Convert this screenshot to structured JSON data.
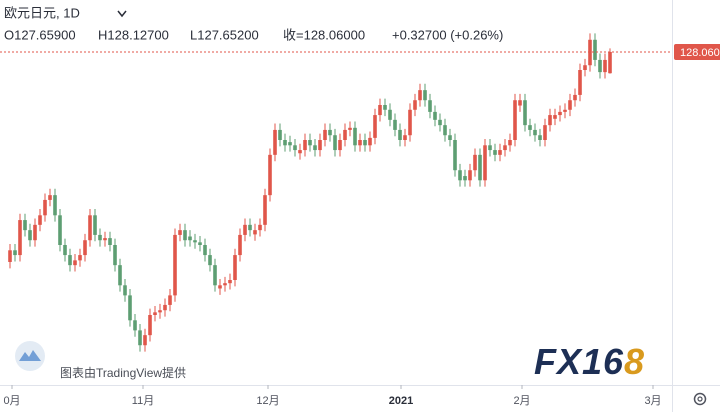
{
  "chart_data": {
    "type": "candlestick",
    "title": "欧元日元, 1D",
    "ohlc_header": [
      "O127.65900",
      "H128.12700",
      "L127.65200",
      "收=128.06000",
      "+0.32700 (+0.26%)"
    ],
    "watermark": "图表由TradingView提供",
    "logo": [
      "FX16",
      "8"
    ],
    "up_color": "#e0564a",
    "down_color": "#5d9e72",
    "x": [
      0,
      1,
      2,
      3,
      4,
      5,
      6,
      7,
      8,
      9,
      10,
      11,
      12,
      13,
      14,
      15,
      16,
      17,
      18,
      19,
      20,
      21,
      22,
      23,
      24,
      25,
      26,
      27,
      28,
      29,
      30,
      31,
      32,
      33,
      34,
      35,
      36,
      37,
      38,
      39,
      40,
      41,
      42,
      43,
      44,
      45,
      46,
      47,
      48,
      49,
      50,
      51,
      52,
      53,
      54,
      55,
      56,
      57,
      58,
      59,
      60,
      61,
      62,
      63,
      64,
      65,
      66,
      67,
      68,
      69,
      70,
      71,
      72,
      73,
      74,
      75,
      76,
      77,
      78,
      79,
      80,
      81,
      82,
      83,
      84,
      85,
      86,
      87,
      88,
      89,
      90,
      91,
      92,
      93,
      94,
      95,
      96,
      97,
      98,
      99,
      100,
      101,
      102,
      103,
      104,
      105,
      106,
      107,
      108,
      109,
      110,
      111,
      112,
      113,
      114,
      115,
      116,
      117,
      118,
      119,
      120
    ],
    "open": [
      124.1,
      124.32,
      124.23,
      124.89,
      124.7,
      124.51,
      124.8,
      124.98,
      125.27,
      125.36,
      124.98,
      124.42,
      124.23,
      124.04,
      124.13,
      124.23,
      124.51,
      124.98,
      124.61,
      124.51,
      124.55,
      124.42,
      124.04,
      123.66,
      123.47,
      123.0,
      122.81,
      122.53,
      122.72,
      123.1,
      123.15,
      123.19,
      123.29,
      123.47,
      124.61,
      124.7,
      124.58,
      124.51,
      124.47,
      124.42,
      124.23,
      124.04,
      123.6,
      123.66,
      123.7,
      123.76,
      124.23,
      124.61,
      124.8,
      124.62,
      124.7,
      124.8,
      125.36,
      126.12,
      126.59,
      126.4,
      126.36,
      126.3,
      126.15,
      126.21,
      126.4,
      126.3,
      126.21,
      126.4,
      126.59,
      126.49,
      126.21,
      126.4,
      126.59,
      126.63,
      126.3,
      126.4,
      126.3,
      126.44,
      126.87,
      127.06,
      126.97,
      126.78,
      126.59,
      126.4,
      126.49,
      126.97,
      127.15,
      127.34,
      127.15,
      126.93,
      126.78,
      126.68,
      126.49,
      126.4,
      125.83,
      125.72,
      125.64,
      125.83,
      126.12,
      125.64,
      126.3,
      126.21,
      126.12,
      126.21,
      126.3,
      126.4,
      127.05,
      127.15,
      126.68,
      126.59,
      126.49,
      126.4,
      126.68,
      126.8,
      126.87,
      126.93,
      126.97,
      127.15,
      127.25,
      127.72,
      127.81,
      128.29,
      127.91,
      127.68,
      127.659
    ],
    "high": [
      124.44,
      124.44,
      125.01,
      125.01,
      124.82,
      124.92,
      125.1,
      125.39,
      125.48,
      125.48,
      125.1,
      124.54,
      124.35,
      124.25,
      124.35,
      124.63,
      125.1,
      125.1,
      124.73,
      124.67,
      124.67,
      124.54,
      124.16,
      123.78,
      123.59,
      123.12,
      122.93,
      122.84,
      123.22,
      123.27,
      123.31,
      123.41,
      123.59,
      124.73,
      124.82,
      124.82,
      124.7,
      124.63,
      124.59,
      124.54,
      124.35,
      124.16,
      123.78,
      123.82,
      123.88,
      124.35,
      124.73,
      124.92,
      124.92,
      124.82,
      124.92,
      125.48,
      126.24,
      126.71,
      126.71,
      126.52,
      126.48,
      126.42,
      126.33,
      126.52,
      126.52,
      126.42,
      126.52,
      126.71,
      126.71,
      126.61,
      126.52,
      126.71,
      126.75,
      126.75,
      126.52,
      126.52,
      126.56,
      126.99,
      127.18,
      127.18,
      127.09,
      126.9,
      126.71,
      126.61,
      127.09,
      127.27,
      127.46,
      127.46,
      127.27,
      127.05,
      126.9,
      126.8,
      126.61,
      126.52,
      125.95,
      125.84,
      125.95,
      126.24,
      126.24,
      126.42,
      126.42,
      126.33,
      126.33,
      126.42,
      126.52,
      127.27,
      127.27,
      127.27,
      126.8,
      126.71,
      126.61,
      126.8,
      126.99,
      126.99,
      127.05,
      127.09,
      127.27,
      127.37,
      127.84,
      127.93,
      128.41,
      128.41,
      128.03,
      128.03,
      128.127
    ],
    "low": [
      123.98,
      124.11,
      124.11,
      124.58,
      124.39,
      124.39,
      124.68,
      124.86,
      125.15,
      124.86,
      124.3,
      124.11,
      123.92,
      123.92,
      124.01,
      124.11,
      124.39,
      124.49,
      124.39,
      124.39,
      124.3,
      123.92,
      123.54,
      123.35,
      122.88,
      122.69,
      122.41,
      122.41,
      122.6,
      122.98,
      123.03,
      123.07,
      123.17,
      123.35,
      124.49,
      124.39,
      124.39,
      124.35,
      124.3,
      124.11,
      123.92,
      123.54,
      123.48,
      123.54,
      123.58,
      123.64,
      124.11,
      124.49,
      124.58,
      124.5,
      124.58,
      124.68,
      125.24,
      126.0,
      126.28,
      126.18,
      126.18,
      126.09,
      126.03,
      126.09,
      126.18,
      126.09,
      126.09,
      126.28,
      126.37,
      126.09,
      126.09,
      126.28,
      126.47,
      126.18,
      126.18,
      126.18,
      126.18,
      126.32,
      126.75,
      126.85,
      126.66,
      126.47,
      126.28,
      126.28,
      126.37,
      126.85,
      127.03,
      127.03,
      126.81,
      126.66,
      126.56,
      126.37,
      126.28,
      125.71,
      125.52,
      125.52,
      125.52,
      125.71,
      125.52,
      125.52,
      126.09,
      126.0,
      126.0,
      126.09,
      126.18,
      126.28,
      126.93,
      126.56,
      126.47,
      126.37,
      126.28,
      126.28,
      126.56,
      126.68,
      126.75,
      126.81,
      126.85,
      127.03,
      127.13,
      127.6,
      127.69,
      127.79,
      127.56,
      127.56,
      127.652
    ],
    "close": [
      124.32,
      124.23,
      124.89,
      124.7,
      124.51,
      124.8,
      124.98,
      125.27,
      125.36,
      124.98,
      124.42,
      124.23,
      124.04,
      124.13,
      124.23,
      124.51,
      124.98,
      124.61,
      124.51,
      124.55,
      124.42,
      124.04,
      123.66,
      123.47,
      123.0,
      122.81,
      122.53,
      122.72,
      123.1,
      123.15,
      123.19,
      123.29,
      123.47,
      124.61,
      124.7,
      124.51,
      124.51,
      124.47,
      124.42,
      124.23,
      124.04,
      123.66,
      123.66,
      123.7,
      123.76,
      124.23,
      124.61,
      124.8,
      124.7,
      124.7,
      124.8,
      125.36,
      126.12,
      126.59,
      126.4,
      126.3,
      126.3,
      126.21,
      126.21,
      126.4,
      126.3,
      126.21,
      126.4,
      126.59,
      126.49,
      126.21,
      126.4,
      126.59,
      126.63,
      126.3,
      126.4,
      126.3,
      126.44,
      126.87,
      127.06,
      126.97,
      126.78,
      126.59,
      126.4,
      126.49,
      126.97,
      127.15,
      127.34,
      127.15,
      126.93,
      126.78,
      126.68,
      126.49,
      126.4,
      125.83,
      125.64,
      125.64,
      125.83,
      126.12,
      125.64,
      126.3,
      126.21,
      126.12,
      126.21,
      126.3,
      126.4,
      127.15,
      127.15,
      126.68,
      126.59,
      126.49,
      126.4,
      126.68,
      126.87,
      126.87,
      126.93,
      126.97,
      127.15,
      127.25,
      127.72,
      127.81,
      128.29,
      127.91,
      127.68,
      127.91,
      128.06
    ],
    "xlim": [
      -2,
      132.4
    ],
    "ylim": [
      121.78,
      129.04
    ],
    "xticks": [
      {
        "value": 0.4,
        "label": "0月"
      },
      {
        "value": 26.6,
        "label": "11月"
      },
      {
        "value": 51.6,
        "label": "12月"
      },
      {
        "value": 78.2,
        "label": "2021"
      },
      {
        "value": 102.4,
        "label": "2月"
      },
      {
        "value": 128.6,
        "label": "3月"
      }
    ],
    "last_price": {
      "value": 128.06,
      "label": "128.060"
    }
  }
}
